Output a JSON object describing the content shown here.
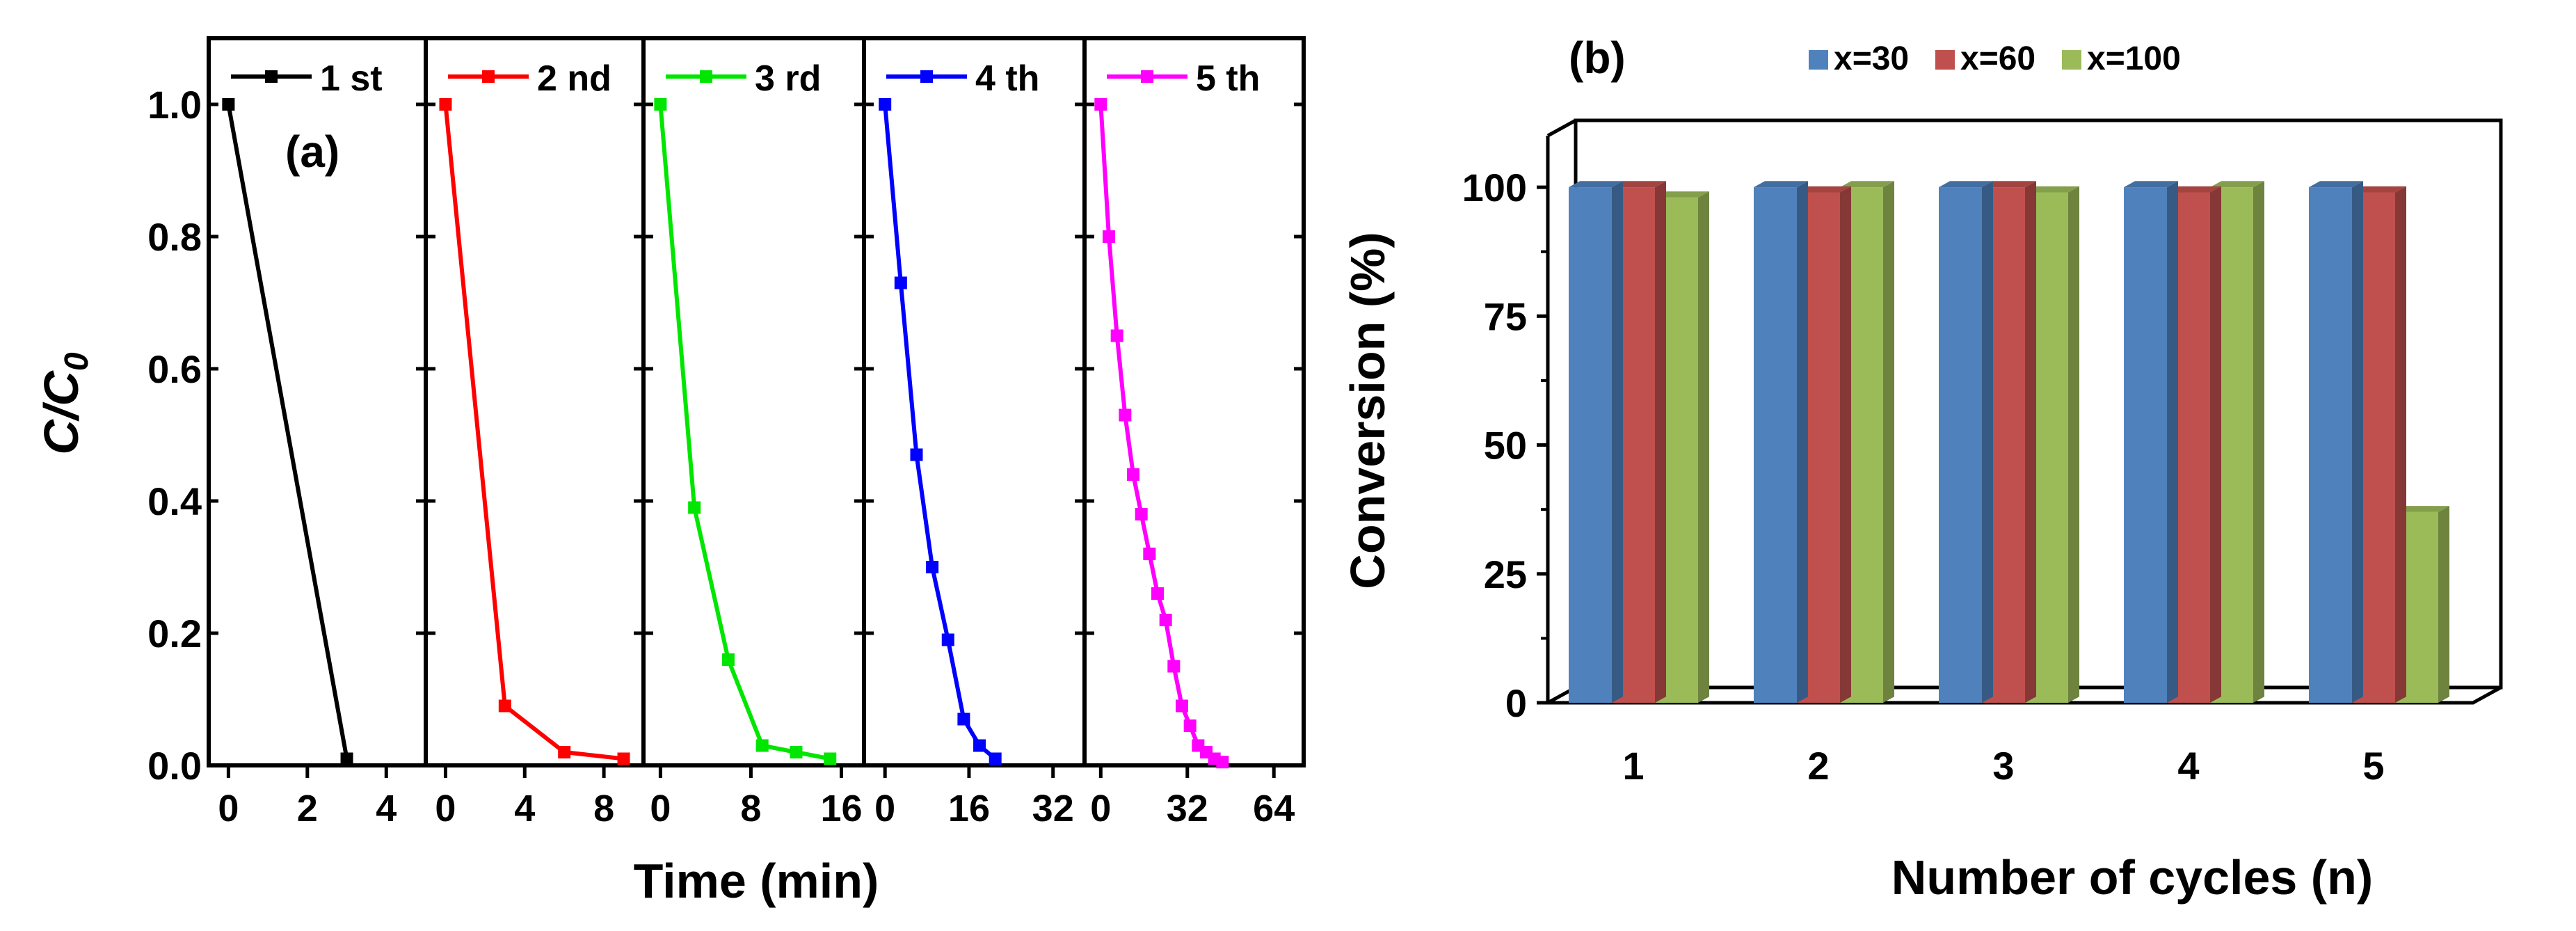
{
  "chart_data": [
    {
      "type": "line",
      "panel_label": "(a)",
      "ylabel_main": "C/C",
      "ylabel_sub": "0",
      "xlabel": "Time (min)",
      "ylim": [
        0.0,
        1.1
      ],
      "yticks": [
        "0.0",
        "0.2",
        "0.4",
        "0.6",
        "0.8",
        "1.0"
      ],
      "series": [
        {
          "name": "1 st",
          "color": "#000000",
          "xlim": [
            -0.5,
            5
          ],
          "xticks": [
            "0",
            "2",
            "4"
          ],
          "x": [
            0,
            3
          ],
          "y": [
            1.0,
            0.01
          ]
        },
        {
          "name": "2 nd",
          "color": "#ff0000",
          "xlim": [
            -1,
            10
          ],
          "xticks": [
            "0",
            "4",
            "8"
          ],
          "x": [
            0,
            3,
            6,
            9
          ],
          "y": [
            1.0,
            0.09,
            0.02,
            0.01
          ]
        },
        {
          "name": "3 rd",
          "color": "#00e600",
          "xlim": [
            -1.5,
            18
          ],
          "xticks": [
            "0",
            "8",
            "16"
          ],
          "x": [
            0,
            3,
            6,
            9,
            12,
            15
          ],
          "y": [
            1.0,
            0.39,
            0.16,
            0.03,
            0.02,
            0.01
          ]
        },
        {
          "name": "4 th",
          "color": "#0000ff",
          "xlim": [
            -4,
            38
          ],
          "xticks": [
            "0",
            "16",
            "32"
          ],
          "x": [
            0,
            3,
            6,
            9,
            12,
            15,
            18,
            21
          ],
          "y": [
            1.0,
            0.73,
            0.47,
            0.3,
            0.19,
            0.07,
            0.03,
            0.01
          ]
        },
        {
          "name": "5 th",
          "color": "#ff00ff",
          "xlim": [
            -6,
            75
          ],
          "xticks": [
            "0",
            "32",
            "64"
          ],
          "x": [
            0,
            3,
            6,
            9,
            12,
            15,
            18,
            21,
            24,
            27,
            30,
            33,
            36,
            39,
            42,
            45
          ],
          "y": [
            1.0,
            0.8,
            0.65,
            0.53,
            0.44,
            0.38,
            0.32,
            0.26,
            0.22,
            0.15,
            0.09,
            0.06,
            0.03,
            0.02,
            0.01,
            0.005
          ]
        }
      ]
    },
    {
      "type": "bar",
      "panel_label": "(b)",
      "xlabel": "Number of cycles (n)",
      "ylabel": "Conversion (%)",
      "ylim": [
        0,
        110
      ],
      "yticks": [
        "0",
        "25",
        "50",
        "75",
        "100"
      ],
      "categories": [
        "1",
        "2",
        "3",
        "4",
        "5"
      ],
      "legend_position": "top",
      "series": [
        {
          "name": "x=30",
          "color": "#4f81bd",
          "values": [
            100,
            100,
            100,
            100,
            100
          ]
        },
        {
          "name": "x=60",
          "color": "#c0504d",
          "values": [
            100,
            99,
            100,
            99,
            99
          ]
        },
        {
          "name": "x=100",
          "color": "#9bbb59",
          "values": [
            98,
            100,
            99,
            100,
            37
          ]
        }
      ]
    }
  ]
}
